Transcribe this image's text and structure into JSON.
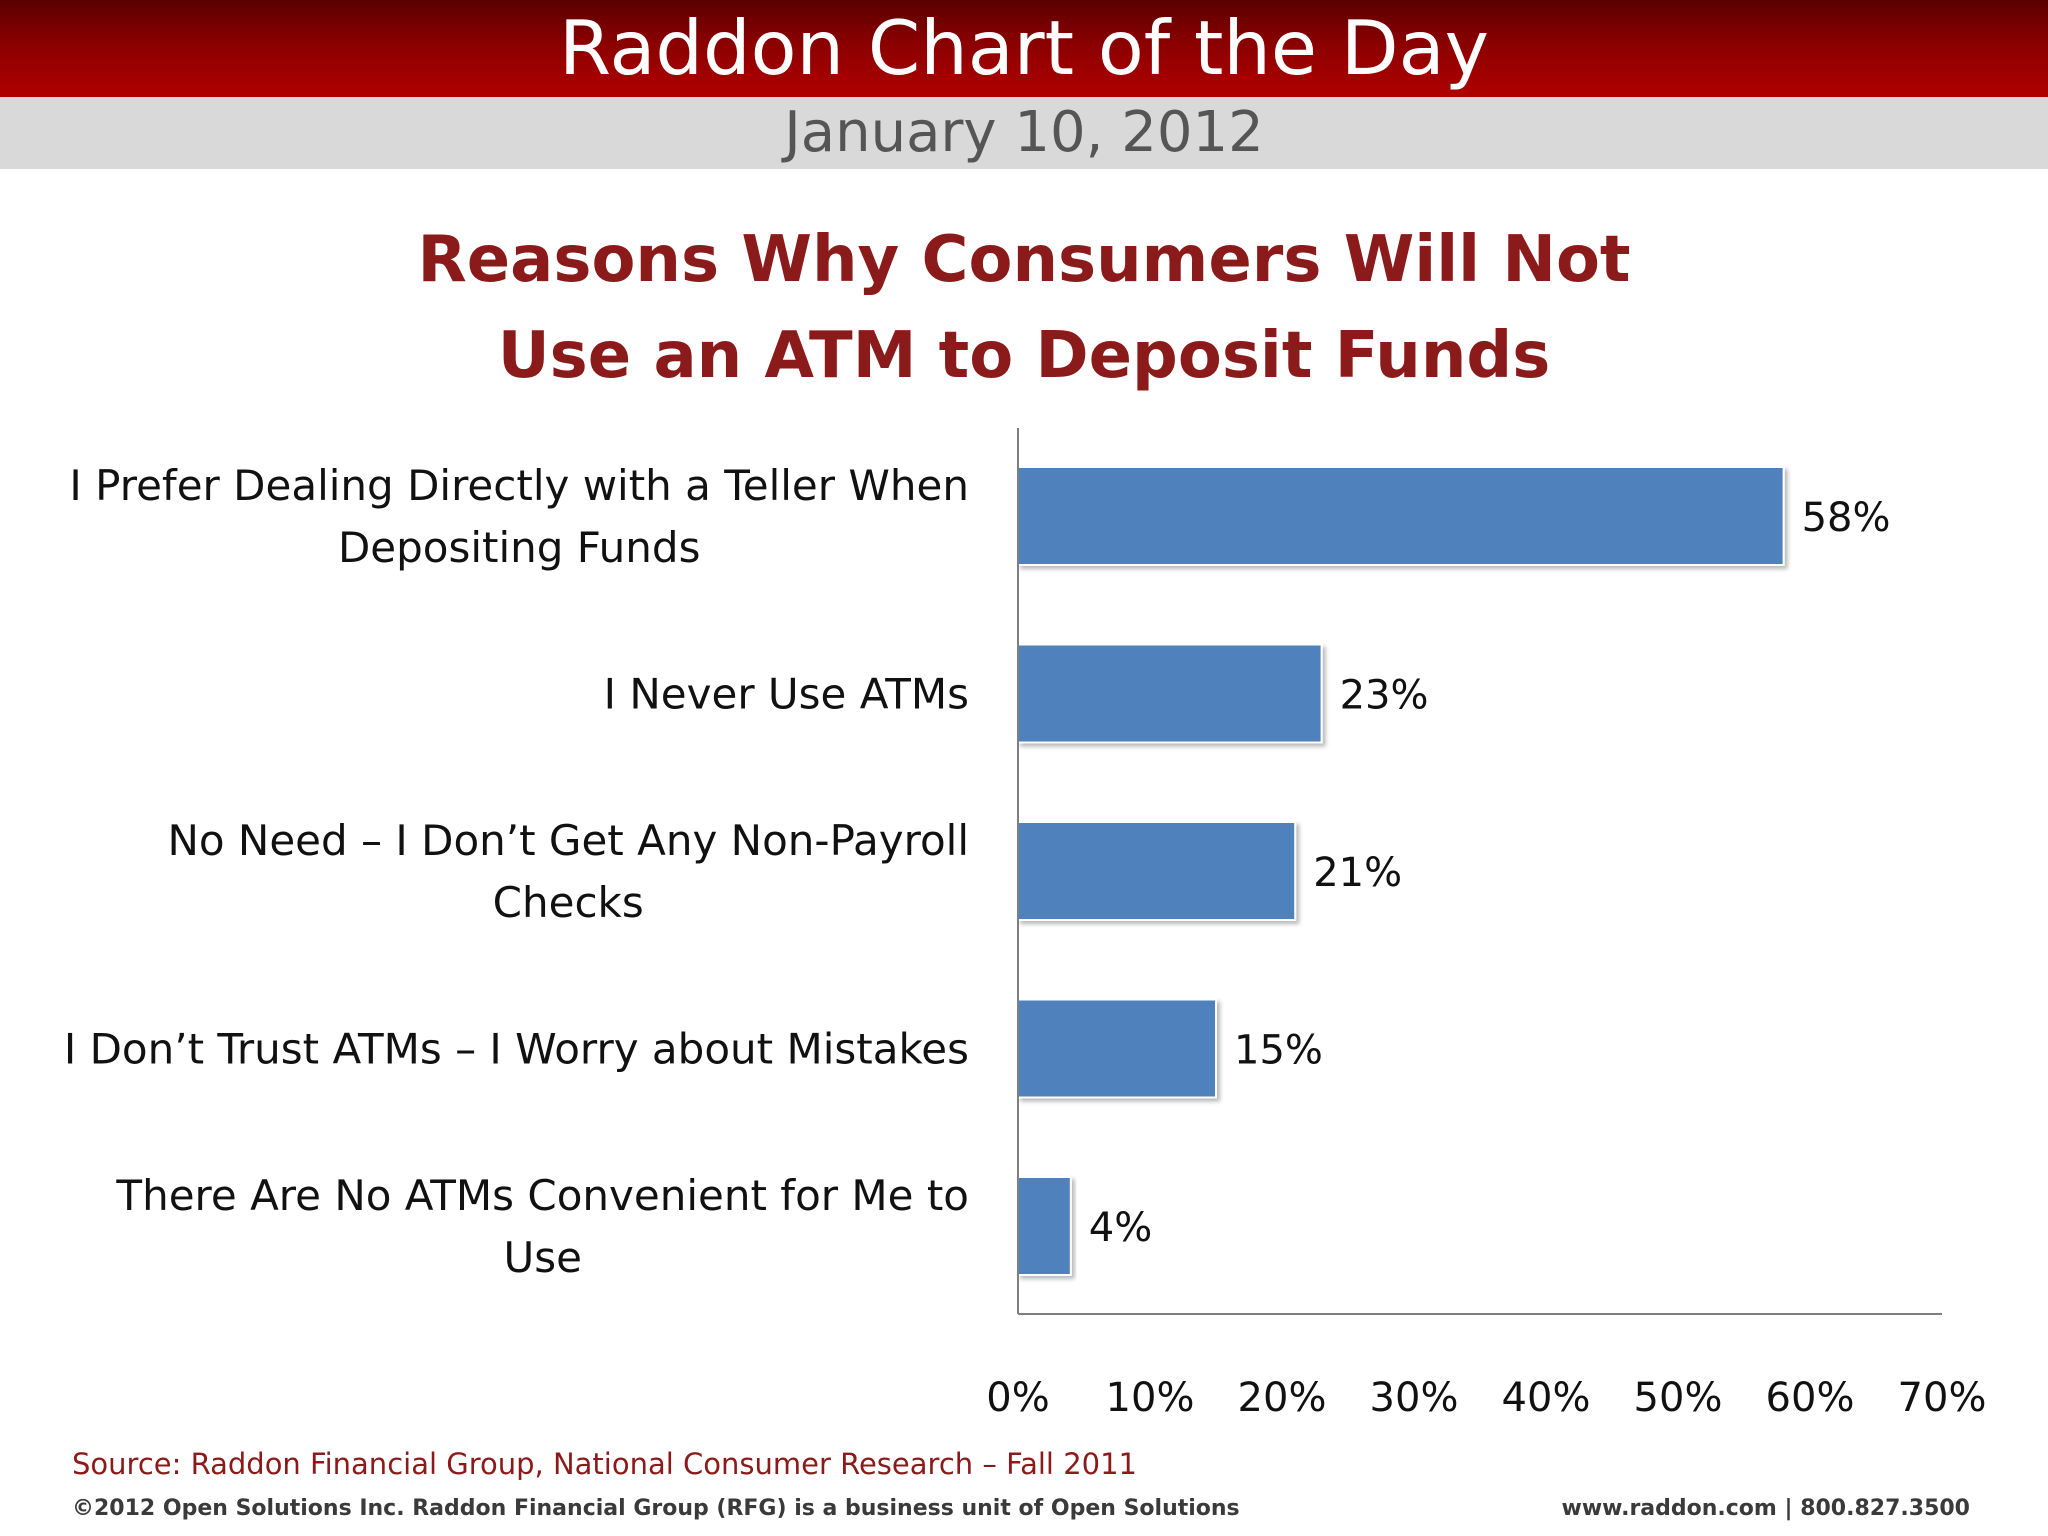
{
  "header": {
    "title": "Raddon Chart of the Day",
    "date": "January 10, 2012"
  },
  "chart_data": {
    "type": "bar",
    "orientation": "horizontal",
    "title": [
      "Reasons Why Consumers Will Not",
      "Use an ATM to Deposit Funds"
    ],
    "categories": [
      [
        "I Prefer Dealing Directly with a Teller When",
        "Depositing Funds"
      ],
      [
        "I Never Use ATMs"
      ],
      [
        "No Need – I Don’t Get Any Non-Payroll",
        "Checks"
      ],
      [
        "I Don’t Trust ATMs – I Worry about Mistakes"
      ],
      [
        "There Are No ATMs Convenient for Me to",
        "Use"
      ]
    ],
    "values": [
      58,
      23,
      21,
      15,
      4
    ],
    "value_labels": [
      "58%",
      "23%",
      "21%",
      "15%",
      "4%"
    ],
    "xlim": [
      0,
      70
    ],
    "xticks": [
      0,
      10,
      20,
      30,
      40,
      50,
      60,
      70
    ],
    "xtick_labels": [
      "0%",
      "10%",
      "20%",
      "30%",
      "40%",
      "50%",
      "60%",
      "70%"
    ],
    "xlabel": "",
    "ylabel": "",
    "grid": false,
    "legend": "none",
    "bar_color": "#4f81bd"
  },
  "footer": {
    "source": "Source: Raddon Financial Group, National Consumer Research – Fall 2011",
    "copyright": "©2012 Open Solutions Inc.  Raddon Financial Group (RFG) is a business unit of Open Solutions",
    "contact": "www.raddon.com  |  800.827.3500"
  },
  "colors": {
    "header_red": "#8b0000",
    "title_red": "#8b1a1a",
    "date_bar_gray": "#d9d9d9"
  }
}
